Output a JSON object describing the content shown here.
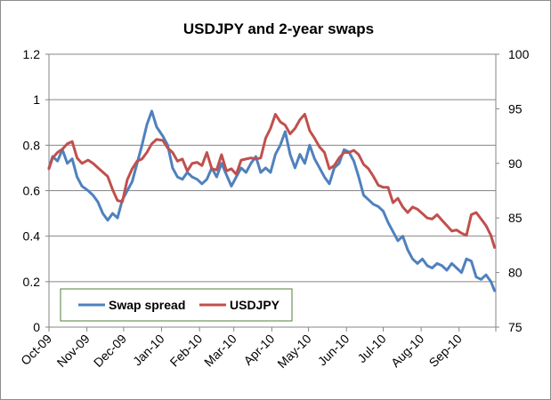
{
  "chart_data": {
    "type": "line",
    "title": "USDJPY and  2-year swaps",
    "xlabel": "",
    "ylabel": "",
    "y2label": "",
    "grid": true,
    "legend_position": "bottom-left",
    "x_tick_labels": [
      "Oct-09",
      "Nov-09",
      "Dec-09",
      "Jan-10",
      "Feb-10",
      "Mar-10",
      "Apr-10",
      "May-10",
      "Jun-10",
      "Jul-10",
      "Aug-10",
      "Sep-10"
    ],
    "y_left": {
      "min": 0,
      "max": 1.2,
      "ticks": [
        "0",
        "0.2",
        "0.4",
        "0.6",
        "0.8",
        "1",
        "1.2"
      ]
    },
    "y_right": {
      "min": 75,
      "max": 100,
      "ticks": [
        "75",
        "80",
        "85",
        "90",
        "95",
        "100"
      ]
    },
    "series": [
      {
        "name": "Swap spread",
        "axis": "left",
        "color": "#4f81bd",
        "points": [
          [
            "2009-10-01",
            0.7
          ],
          [
            "2009-10-04",
            0.75
          ],
          [
            "2009-10-08",
            0.73
          ],
          [
            "2009-10-12",
            0.78
          ],
          [
            "2009-10-16",
            0.72
          ],
          [
            "2009-10-20",
            0.74
          ],
          [
            "2009-10-24",
            0.66
          ],
          [
            "2009-10-28",
            0.62
          ],
          [
            "2009-11-02",
            0.6
          ],
          [
            "2009-11-06",
            0.58
          ],
          [
            "2009-11-10",
            0.55
          ],
          [
            "2009-11-14",
            0.5
          ],
          [
            "2009-11-18",
            0.47
          ],
          [
            "2009-11-22",
            0.5
          ],
          [
            "2009-11-26",
            0.48
          ],
          [
            "2009-11-30",
            0.56
          ],
          [
            "2009-12-04",
            0.6
          ],
          [
            "2009-12-08",
            0.64
          ],
          [
            "2009-12-12",
            0.72
          ],
          [
            "2009-12-16",
            0.8
          ],
          [
            "2009-12-20",
            0.89
          ],
          [
            "2009-12-24",
            0.95
          ],
          [
            "2009-12-28",
            0.88
          ],
          [
            "2010-01-02",
            0.84
          ],
          [
            "2010-01-06",
            0.8
          ],
          [
            "2010-01-10",
            0.7
          ],
          [
            "2010-01-14",
            0.66
          ],
          [
            "2010-01-18",
            0.65
          ],
          [
            "2010-01-22",
            0.68
          ],
          [
            "2010-01-26",
            0.66
          ],
          [
            "2010-01-30",
            0.65
          ],
          [
            "2010-02-03",
            0.63
          ],
          [
            "2010-02-07",
            0.65
          ],
          [
            "2010-02-11",
            0.7
          ],
          [
            "2010-02-15",
            0.66
          ],
          [
            "2010-02-19",
            0.72
          ],
          [
            "2010-02-23",
            0.67
          ],
          [
            "2010-02-27",
            0.62
          ],
          [
            "2010-03-03",
            0.66
          ],
          [
            "2010-03-07",
            0.7
          ],
          [
            "2010-03-11",
            0.68
          ],
          [
            "2010-03-15",
            0.72
          ],
          [
            "2010-03-19",
            0.75
          ],
          [
            "2010-03-23",
            0.68
          ],
          [
            "2010-03-27",
            0.7
          ],
          [
            "2010-03-31",
            0.68
          ],
          [
            "2010-04-04",
            0.76
          ],
          [
            "2010-04-08",
            0.8
          ],
          [
            "2010-04-12",
            0.86
          ],
          [
            "2010-04-16",
            0.76
          ],
          [
            "2010-04-20",
            0.7
          ],
          [
            "2010-04-24",
            0.76
          ],
          [
            "2010-04-28",
            0.72
          ],
          [
            "2010-05-02",
            0.8
          ],
          [
            "2010-05-06",
            0.74
          ],
          [
            "2010-05-10",
            0.7
          ],
          [
            "2010-05-14",
            0.66
          ],
          [
            "2010-05-18",
            0.63
          ],
          [
            "2010-05-22",
            0.7
          ],
          [
            "2010-05-26",
            0.72
          ],
          [
            "2010-05-30",
            0.78
          ],
          [
            "2010-06-03",
            0.77
          ],
          [
            "2010-06-07",
            0.73
          ],
          [
            "2010-06-11",
            0.66
          ],
          [
            "2010-06-15",
            0.58
          ],
          [
            "2010-06-19",
            0.56
          ],
          [
            "2010-06-23",
            0.54
          ],
          [
            "2010-06-27",
            0.53
          ],
          [
            "2010-07-01",
            0.51
          ],
          [
            "2010-07-05",
            0.46
          ],
          [
            "2010-07-09",
            0.42
          ],
          [
            "2010-07-13",
            0.38
          ],
          [
            "2010-07-17",
            0.4
          ],
          [
            "2010-07-21",
            0.34
          ],
          [
            "2010-07-25",
            0.3
          ],
          [
            "2010-07-29",
            0.28
          ],
          [
            "2010-08-02",
            0.3
          ],
          [
            "2010-08-06",
            0.27
          ],
          [
            "2010-08-10",
            0.26
          ],
          [
            "2010-08-14",
            0.28
          ],
          [
            "2010-08-18",
            0.27
          ],
          [
            "2010-08-22",
            0.25
          ],
          [
            "2010-08-26",
            0.28
          ],
          [
            "2010-08-30",
            0.26
          ],
          [
            "2010-09-03",
            0.24
          ],
          [
            "2010-09-07",
            0.3
          ],
          [
            "2010-09-11",
            0.29
          ],
          [
            "2010-09-15",
            0.22
          ],
          [
            "2010-09-19",
            0.21
          ],
          [
            "2010-09-23",
            0.23
          ],
          [
            "2010-09-27",
            0.2
          ],
          [
            "2010-09-30",
            0.16
          ]
        ]
      },
      {
        "name": "USDJPY",
        "axis": "right",
        "color": "#c0504d",
        "points": [
          [
            "2009-10-01",
            89.5
          ],
          [
            "2009-10-04",
            90.5
          ],
          [
            "2009-10-08",
            91.0
          ],
          [
            "2009-10-12",
            91.3
          ],
          [
            "2009-10-16",
            91.8
          ],
          [
            "2009-10-20",
            92.0
          ],
          [
            "2009-10-24",
            90.5
          ],
          [
            "2009-10-28",
            90.0
          ],
          [
            "2009-11-02",
            90.3
          ],
          [
            "2009-11-06",
            90.0
          ],
          [
            "2009-11-10",
            89.6
          ],
          [
            "2009-11-14",
            89.2
          ],
          [
            "2009-11-18",
            88.8
          ],
          [
            "2009-11-22",
            87.6
          ],
          [
            "2009-11-26",
            86.6
          ],
          [
            "2009-11-30",
            86.5
          ],
          [
            "2009-12-04",
            88.5
          ],
          [
            "2009-12-08",
            89.5
          ],
          [
            "2009-12-12",
            90.2
          ],
          [
            "2009-12-16",
            90.4
          ],
          [
            "2009-12-20",
            91.0
          ],
          [
            "2009-12-24",
            91.8
          ],
          [
            "2009-12-28",
            92.2
          ],
          [
            "2010-01-02",
            92.1
          ],
          [
            "2010-01-06",
            91.4
          ],
          [
            "2010-01-10",
            91.0
          ],
          [
            "2010-01-14",
            90.2
          ],
          [
            "2010-01-18",
            90.4
          ],
          [
            "2010-01-22",
            89.3
          ],
          [
            "2010-01-26",
            90.0
          ],
          [
            "2010-01-30",
            90.1
          ],
          [
            "2010-02-03",
            89.8
          ],
          [
            "2010-02-07",
            91.0
          ],
          [
            "2010-02-11",
            89.5
          ],
          [
            "2010-02-15",
            89.4
          ],
          [
            "2010-02-19",
            90.8
          ],
          [
            "2010-02-23",
            89.3
          ],
          [
            "2010-02-27",
            89.5
          ],
          [
            "2010-03-03",
            89.0
          ],
          [
            "2010-03-07",
            90.3
          ],
          [
            "2010-03-11",
            90.4
          ],
          [
            "2010-03-15",
            90.5
          ],
          [
            "2010-03-19",
            90.4
          ],
          [
            "2010-03-23",
            90.5
          ],
          [
            "2010-03-27",
            92.3
          ],
          [
            "2010-03-31",
            93.2
          ],
          [
            "2010-04-04",
            94.5
          ],
          [
            "2010-04-08",
            93.8
          ],
          [
            "2010-04-12",
            93.5
          ],
          [
            "2010-04-16",
            92.7
          ],
          [
            "2010-04-20",
            93.2
          ],
          [
            "2010-04-24",
            94.0
          ],
          [
            "2010-04-28",
            94.5
          ],
          [
            "2010-05-02",
            93.0
          ],
          [
            "2010-05-06",
            92.3
          ],
          [
            "2010-05-10",
            91.5
          ],
          [
            "2010-05-14",
            91.0
          ],
          [
            "2010-05-18",
            89.5
          ],
          [
            "2010-05-22",
            89.8
          ],
          [
            "2010-05-26",
            90.5
          ],
          [
            "2010-05-30",
            91.0
          ],
          [
            "2010-06-03",
            91.0
          ],
          [
            "2010-06-07",
            91.2
          ],
          [
            "2010-06-11",
            90.8
          ],
          [
            "2010-06-15",
            89.9
          ],
          [
            "2010-06-19",
            89.5
          ],
          [
            "2010-06-23",
            88.8
          ],
          [
            "2010-06-27",
            88.0
          ],
          [
            "2010-07-01",
            87.8
          ],
          [
            "2010-07-05",
            87.8
          ],
          [
            "2010-07-09",
            86.4
          ],
          [
            "2010-07-13",
            86.8
          ],
          [
            "2010-07-17",
            86.0
          ],
          [
            "2010-07-21",
            85.5
          ],
          [
            "2010-07-25",
            86.0
          ],
          [
            "2010-07-29",
            85.8
          ],
          [
            "2010-08-02",
            85.4
          ],
          [
            "2010-08-06",
            85.0
          ],
          [
            "2010-08-10",
            84.9
          ],
          [
            "2010-08-14",
            85.3
          ],
          [
            "2010-08-18",
            84.8
          ],
          [
            "2010-08-22",
            84.3
          ],
          [
            "2010-08-26",
            83.8
          ],
          [
            "2010-08-30",
            83.9
          ],
          [
            "2010-09-03",
            83.6
          ],
          [
            "2010-09-07",
            83.4
          ],
          [
            "2010-09-11",
            85.3
          ],
          [
            "2010-09-15",
            85.5
          ],
          [
            "2010-09-19",
            84.9
          ],
          [
            "2010-09-23",
            84.3
          ],
          [
            "2010-09-27",
            83.4
          ],
          [
            "2010-09-30",
            82.3
          ]
        ]
      }
    ]
  }
}
